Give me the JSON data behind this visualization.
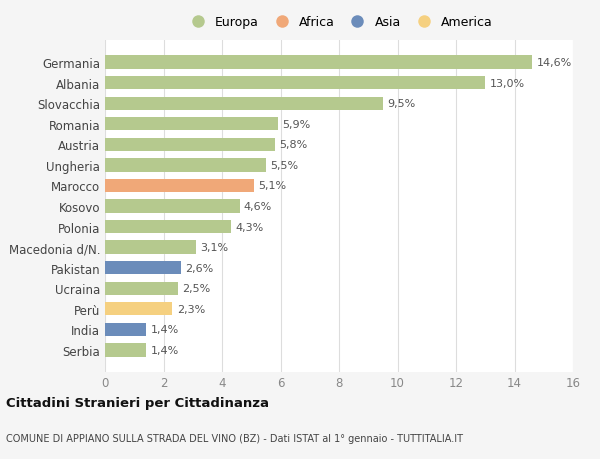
{
  "categories": [
    "Germania",
    "Albania",
    "Slovacchia",
    "Romania",
    "Austria",
    "Ungheria",
    "Marocco",
    "Kosovo",
    "Polonia",
    "Macedonia d/N.",
    "Pakistan",
    "Ucraina",
    "Perù",
    "India",
    "Serbia"
  ],
  "values": [
    14.6,
    13.0,
    9.5,
    5.9,
    5.8,
    5.5,
    5.1,
    4.6,
    4.3,
    3.1,
    2.6,
    2.5,
    2.3,
    1.4,
    1.4
  ],
  "labels": [
    "14,6%",
    "13,0%",
    "9,5%",
    "5,9%",
    "5,8%",
    "5,5%",
    "5,1%",
    "4,6%",
    "4,3%",
    "3,1%",
    "2,6%",
    "2,5%",
    "2,3%",
    "1,4%",
    "1,4%"
  ],
  "continents": [
    "Europa",
    "Europa",
    "Europa",
    "Europa",
    "Europa",
    "Europa",
    "Africa",
    "Europa",
    "Europa",
    "Europa",
    "Asia",
    "Europa",
    "America",
    "Asia",
    "Europa"
  ],
  "colors": {
    "Europa": "#b5c98e",
    "Africa": "#f0a878",
    "Asia": "#6b8cba",
    "America": "#f5d080"
  },
  "legend_order": [
    "Europa",
    "Africa",
    "Asia",
    "America"
  ],
  "title": "Cittadini Stranieri per Cittadinanza",
  "subtitle": "COMUNE DI APPIANO SULLA STRADA DEL VINO (BZ) - Dati ISTAT al 1° gennaio - TUTTITALIA.IT",
  "xlim": [
    0,
    16
  ],
  "xticks": [
    0,
    2,
    4,
    6,
    8,
    10,
    12,
    14,
    16
  ],
  "background_color": "#f5f5f5",
  "plot_bg_color": "#ffffff"
}
